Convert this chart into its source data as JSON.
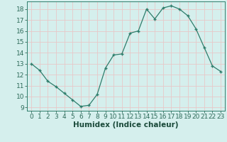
{
  "x": [
    0,
    1,
    2,
    3,
    4,
    5,
    6,
    7,
    8,
    9,
    10,
    11,
    12,
    13,
    14,
    15,
    16,
    17,
    18,
    19,
    20,
    21,
    22,
    23
  ],
  "y": [
    13.0,
    12.4,
    11.4,
    10.9,
    10.3,
    9.7,
    9.1,
    9.2,
    10.2,
    12.6,
    13.8,
    13.9,
    15.8,
    16.0,
    18.0,
    17.1,
    18.1,
    18.3,
    18.0,
    17.4,
    16.2,
    14.5,
    12.8,
    12.3
  ],
  "xlabel": "Humidex (Indice chaleur)",
  "xlim": [
    -0.5,
    23.5
  ],
  "ylim": [
    8.7,
    18.7
  ],
  "yticks": [
    9,
    10,
    11,
    12,
    13,
    14,
    15,
    16,
    17,
    18
  ],
  "xticks": [
    0,
    1,
    2,
    3,
    4,
    5,
    6,
    7,
    8,
    9,
    10,
    11,
    12,
    13,
    14,
    15,
    16,
    17,
    18,
    19,
    20,
    21,
    22,
    23
  ],
  "line_color": "#2e7d6b",
  "marker_color": "#2e7d6b",
  "bg_color": "#d5efed",
  "grid_color": "#e8c8c8",
  "tick_label_color": "#2e6b5a",
  "xlabel_color": "#1a4a3a",
  "xlabel_fontsize": 7.5,
  "tick_fontsize": 6.5
}
